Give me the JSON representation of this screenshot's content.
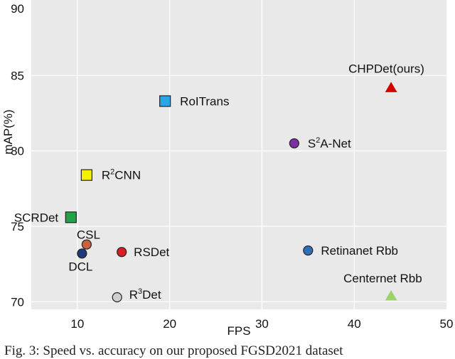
{
  "chart_data": {
    "type": "scatter",
    "xlabel": "FPS",
    "ylabel": "mAP(%)",
    "xlim": [
      5,
      50
    ],
    "ylim": [
      69.5,
      90
    ],
    "x_ticks": [
      10,
      20,
      30,
      40,
      50
    ],
    "y_ticks": [
      70,
      75,
      80,
      85,
      90
    ],
    "grid": true,
    "points": [
      {
        "name": "CHPDet(ours)",
        "label": "CHPDet(ours)",
        "label_sup": "",
        "label_rest": "",
        "x": 44,
        "y": 84.2,
        "marker": "triangle",
        "color": "#d40000"
      },
      {
        "name": "RoITrans",
        "label": "RoITrans",
        "label_sup": "",
        "label_rest": "",
        "x": 19.5,
        "y": 83.3,
        "marker": "square",
        "color": "#27a7e7"
      },
      {
        "name": "S2A-Net",
        "label": "S",
        "label_sup": "2",
        "label_rest": "A-Net",
        "x": 33.5,
        "y": 80.5,
        "marker": "circle",
        "color": "#7b2fa4"
      },
      {
        "name": "R2CNN",
        "label": "R",
        "label_sup": "2",
        "label_rest": "CNN",
        "x": 11,
        "y": 78.4,
        "marker": "square",
        "color": "#f5f000"
      },
      {
        "name": "SCRDet",
        "label": "SCRDet",
        "label_sup": "",
        "label_rest": "",
        "x": 9.3,
        "y": 75.6,
        "marker": "square",
        "color": "#22a34a"
      },
      {
        "name": "CSL",
        "label": "CSL",
        "label_sup": "",
        "label_rest": "",
        "x": 11,
        "y": 73.8,
        "marker": "circle",
        "color": "#c9603f"
      },
      {
        "name": "DCL",
        "label": "DCL",
        "label_sup": "",
        "label_rest": "",
        "x": 10.5,
        "y": 73.2,
        "marker": "circle",
        "color": "#1f3a78"
      },
      {
        "name": "RSDet",
        "label": "RSDet",
        "label_sup": "",
        "label_rest": "",
        "x": 14.8,
        "y": 73.3,
        "marker": "circle",
        "color": "#d42020"
      },
      {
        "name": "Retinanet Rbb",
        "label": "Retinanet Rbb",
        "label_sup": "",
        "label_rest": "",
        "x": 35,
        "y": 73.4,
        "marker": "circle",
        "color": "#2f6fb5"
      },
      {
        "name": "Centernet Rbb",
        "label": "Centernet Rbb",
        "label_sup": "",
        "label_rest": "",
        "x": 44,
        "y": 70.4,
        "marker": "triangle",
        "color": "#9fd16a"
      },
      {
        "name": "R3Det",
        "label": "R",
        "label_sup": "3",
        "label_rest": "Det",
        "x": 14.3,
        "y": 70.3,
        "marker": "circle",
        "color": "#cfcfcf"
      }
    ]
  },
  "caption": "Fig. 3: Speed vs. accuracy on our proposed FGSD2021 dataset"
}
